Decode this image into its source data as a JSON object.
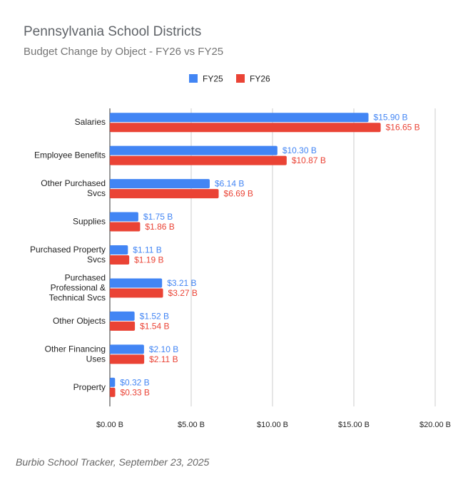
{
  "chart_data": {
    "type": "bar",
    "orientation": "horizontal",
    "title": "Pennsylvania School Districts",
    "subtitle": "Budget Change by Object - FY26 vs FY25",
    "source": "Burbio School Tracker, September 23, 2025",
    "categories": [
      [
        "Salaries"
      ],
      [
        "Employee Benefits"
      ],
      [
        "Other Purchased",
        "Svcs"
      ],
      [
        "Supplies"
      ],
      [
        "Purchased Property",
        "Svcs"
      ],
      [
        "Purchased",
        "Professional &",
        "Technical Svcs"
      ],
      [
        "Other Objects"
      ],
      [
        "Other Financing",
        "Uses"
      ],
      [
        "Property"
      ]
    ],
    "series": [
      {
        "name": "FY25",
        "color": "#4285f4",
        "values": [
          15.9,
          10.3,
          6.14,
          1.75,
          1.11,
          3.21,
          1.52,
          2.1,
          0.32
        ],
        "labels": [
          "$15.90 B",
          "$10.30 B",
          "$6.14 B",
          "$1.75 B",
          "$1.11 B",
          "$3.21 B",
          "$1.52 B",
          "$2.10 B",
          "$0.32 B"
        ]
      },
      {
        "name": "FY26",
        "color": "#ea4335",
        "values": [
          16.65,
          10.87,
          6.69,
          1.86,
          1.19,
          3.27,
          1.54,
          2.11,
          0.33
        ],
        "labels": [
          "$16.65 B",
          "$10.87 B",
          "$6.69 B",
          "$1.86 B",
          "$1.19 B",
          "$3.27 B",
          "$1.54 B",
          "$2.11 B",
          "$0.33 B"
        ]
      }
    ],
    "xlim": [
      0,
      20
    ],
    "xticks": [
      0,
      5,
      10,
      15,
      20
    ],
    "xtick_labels": [
      "$0.00 B",
      "$5.00 B",
      "$10.00 B",
      "$15.00 B",
      "$20.00 B"
    ],
    "grid": true,
    "legend": "top-center"
  }
}
